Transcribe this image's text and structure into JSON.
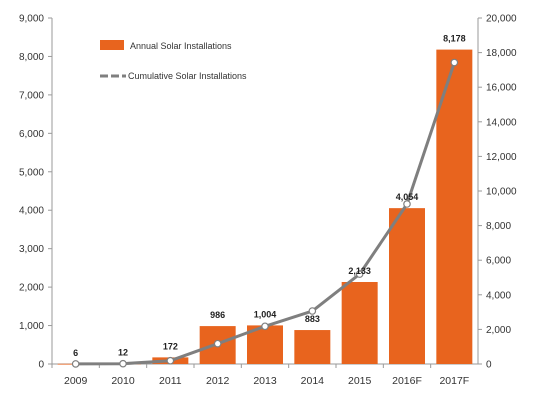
{
  "chart_data": {
    "type": "bar",
    "categories": [
      "2009",
      "2010",
      "2011",
      "2012",
      "2013",
      "2014",
      "2015",
      "2016F",
      "2017F"
    ],
    "series": [
      {
        "name": "Annual Solar Installations",
        "type": "bar",
        "axis": "left",
        "color": "#E8641E",
        "values": [
          6,
          12,
          172,
          986,
          1004,
          883,
          2133,
          4054,
          8178
        ],
        "data_labels": [
          "6",
          "12",
          "172",
          "986",
          "1,004",
          "883",
          "2,133",
          "4,054",
          "8,178"
        ]
      },
      {
        "name": "Cumulative Solar Installations",
        "type": "line",
        "axis": "right",
        "color": "#7F7F7F",
        "values": [
          6,
          18,
          190,
          1176,
          2180,
          3063,
          5196,
          9250,
          17428
        ]
      }
    ],
    "y_left": {
      "ylim": [
        0,
        9000
      ],
      "ticks": [
        0,
        1000,
        2000,
        3000,
        4000,
        5000,
        6000,
        7000,
        8000,
        9000
      ],
      "tick_labels": [
        "0",
        "1,000",
        "2,000",
        "3,000",
        "4,000",
        "5,000",
        "6,000",
        "7,000",
        "8,000",
        "9,000"
      ]
    },
    "y_right": {
      "ylim": [
        0,
        20000
      ],
      "ticks": [
        0,
        2000,
        4000,
        6000,
        8000,
        10000,
        12000,
        14000,
        16000,
        18000,
        20000
      ],
      "tick_labels": [
        "0",
        "2,000",
        "4,000",
        "6,000",
        "8,000",
        "10,000",
        "12,000",
        "14,000",
        "16,000",
        "18,000",
        "20,000"
      ]
    },
    "legend": {
      "placement": "top-left",
      "entries": [
        "Annual Solar Installations",
        "Cumulative Solar Installations"
      ]
    },
    "grid": false
  }
}
